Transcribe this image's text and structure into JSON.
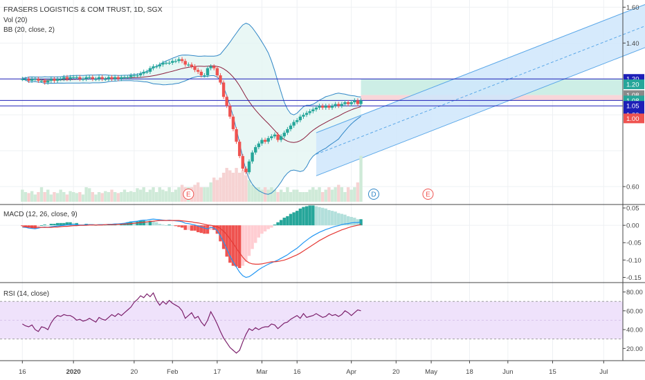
{
  "header": {
    "title": "FRASERS LOGISTICS & COM TRUST, 1D, SGX",
    "indicator_vol": "Vol (20)",
    "indicator_bb": "BB (20, close, 2)"
  },
  "colors": {
    "up": "#26a69a",
    "down": "#ef5350",
    "bb_line": "#2f86c6",
    "bb_basis": "#8a1d3c",
    "channel_fill": "#cfe6fb",
    "hline": "#1d1fb8",
    "target": "#cdeee6",
    "stop": "#f8d6d9",
    "macd": "#2196f3",
    "signal": "#e53935",
    "rsi": "#7b1f6b",
    "rsi_band": "#efe2fb"
  },
  "x_axis": {
    "ticks": [
      {
        "label": "16",
        "day": 0
      },
      {
        "label": "2020",
        "day": 16
      },
      {
        "label": "20",
        "day": 35
      },
      {
        "label": "Feb",
        "day": 47
      },
      {
        "label": "17",
        "day": 61
      },
      {
        "label": "Mar",
        "day": 75
      },
      {
        "label": "16",
        "day": 86
      },
      {
        "label": "Apr",
        "day": 103
      },
      {
        "label": "20",
        "day": 117
      },
      {
        "label": "May",
        "day": 128
      },
      {
        "label": "18",
        "day": 140
      },
      {
        "label": "Jun",
        "day": 152
      },
      {
        "label": "15",
        "day": 166
      },
      {
        "label": "Jul",
        "day": 182
      }
    ]
  },
  "price_panel": {
    "ylim": [
      0.5,
      1.64
    ],
    "y_ticks": [
      "1.60",
      "1.40",
      "1.20",
      "1.08",
      "1.05",
      "1.00",
      "0.60"
    ],
    "y_tick_values": [
      1.6,
      1.4,
      1.2,
      1.08,
      1.05,
      1.0,
      0.6
    ],
    "horizontal_lines": [
      1.2,
      1.08,
      1.05
    ],
    "price_tags": [
      {
        "label": "1.20",
        "value": 1.2,
        "color": "#1d1fb8"
      },
      {
        "label": "1.20",
        "value": 1.17,
        "color": "#26a69a"
      },
      {
        "label": "1.08",
        "value": 1.11,
        "color": "#8a8a8a"
      },
      {
        "label": "1.08",
        "value": 1.08,
        "color": "#26a69a"
      },
      {
        "label": "1.05",
        "value": 1.05,
        "color": "#1d1fb8"
      },
      {
        "label": "1.00",
        "value": 1.0,
        "color": "#1d1fb8"
      },
      {
        "label": "1.00",
        "value": 0.98,
        "color": "#ef5350"
      }
    ],
    "channel": {
      "start_day": 92,
      "end_day": 200,
      "start_mid": 0.78,
      "end_mid": 1.53,
      "half_width": 0.12
    },
    "event_markers": [
      {
        "label": "E",
        "day": 52
      },
      {
        "label": "D",
        "day": 110
      },
      {
        "label": "E",
        "day": 127
      }
    ]
  },
  "macd_panel": {
    "title": "MACD (12, 26, close, 9)",
    "ylim": [
      -0.165,
      0.06
    ],
    "y_ticks": [
      "0.05",
      "0.00",
      "-0.05",
      "-0.10",
      "-0.15"
    ],
    "y_tick_values": [
      0.05,
      0.0,
      -0.05,
      -0.1,
      -0.15
    ]
  },
  "rsi_panel": {
    "title": "RSI (14, close)",
    "ylim": [
      7,
      90
    ],
    "band": [
      30,
      70
    ],
    "y_ticks": [
      "80.00",
      "60.00",
      "40.00",
      "20.00"
    ],
    "y_tick_values": [
      80,
      60,
      40,
      20
    ]
  },
  "chart_data": {
    "type": "candlestick",
    "title": "FRASERS LOGISTICS & COM TRUST, 1D, SGX",
    "ylim": [
      0.5,
      1.64
    ],
    "x_day_range": [
      -7,
      188
    ],
    "close": [
      1.2,
      1.2,
      1.19,
      1.2,
      1.2,
      1.19,
      1.19,
      1.18,
      1.19,
      1.2,
      1.19,
      1.2,
      1.2,
      1.21,
      1.2,
      1.21,
      1.21,
      1.21,
      1.2,
      1.2,
      1.21,
      1.21,
      1.2,
      1.2,
      1.21,
      1.2,
      1.2,
      1.21,
      1.2,
      1.21,
      1.2,
      1.21,
      1.21,
      1.21,
      1.22,
      1.22,
      1.22,
      1.23,
      1.24,
      1.24,
      1.26,
      1.27,
      1.27,
      1.28,
      1.29,
      1.29,
      1.29,
      1.3,
      1.3,
      1.31,
      1.3,
      1.28,
      1.28,
      1.27,
      1.25,
      1.24,
      1.22,
      1.22,
      1.26,
      1.27,
      1.26,
      1.22,
      1.18,
      1.1,
      1.05,
      0.99,
      0.92,
      0.85,
      0.77,
      0.7,
      0.68,
      0.74,
      0.79,
      0.82,
      0.84,
      0.86,
      0.85,
      0.87,
      0.88,
      0.89,
      0.86,
      0.88,
      0.9,
      0.92,
      0.94,
      0.96,
      0.97,
      0.99,
      1.0,
      1.01,
      1.02,
      1.03,
      1.04,
      1.05,
      1.04,
      1.05,
      1.04,
      1.05,
      1.06,
      1.05,
      1.06,
      1.07,
      1.06,
      1.07,
      1.08,
      1.06,
      1.08
    ],
    "volume": [
      0.25,
      0.2,
      0.18,
      0.22,
      0.15,
      0.2,
      0.3,
      0.2,
      0.25,
      0.15,
      0.2,
      0.18,
      0.25,
      0.2,
      0.15,
      0.22,
      0.2,
      0.18,
      0.2,
      0.15,
      0.3,
      0.28,
      0.2,
      0.15,
      0.2,
      0.18,
      0.22,
      0.2,
      0.25,
      0.2,
      0.18,
      0.2,
      0.25,
      0.2,
      0.22,
      0.2,
      0.28,
      0.25,
      0.3,
      0.2,
      0.25,
      0.3,
      0.2,
      0.3,
      0.25,
      0.22,
      0.3,
      0.2,
      0.25,
      0.3,
      0.35,
      0.3,
      0.3,
      0.3,
      0.35,
      0.4,
      0.3,
      0.3,
      0.3,
      0.4,
      0.5,
      0.45,
      0.5,
      0.6,
      0.7,
      0.65,
      0.6,
      0.7,
      0.6,
      0.65,
      0.55,
      0.45,
      0.35,
      0.3,
      0.3,
      0.25,
      0.3,
      0.25,
      0.3,
      0.25,
      0.2,
      0.25,
      0.2,
      0.3,
      0.2,
      0.25,
      0.25,
      0.2,
      0.2,
      0.2,
      0.25,
      0.3,
      0.25,
      0.3,
      0.2,
      0.25,
      0.3,
      0.25,
      0.3,
      0.35,
      0.3,
      0.2,
      0.3,
      0.25,
      0.3,
      0.4,
      0.95
    ],
    "rsi": [
      46,
      44,
      43,
      45,
      40,
      38,
      43,
      42,
      40,
      47,
      52,
      55,
      54,
      56,
      55,
      55,
      53,
      50,
      51,
      49,
      50,
      52,
      50,
      48,
      53,
      51,
      50,
      53,
      56,
      54,
      57,
      55,
      58,
      61,
      64,
      69,
      72,
      76,
      74,
      78,
      75,
      79,
      71,
      66,
      70,
      67,
      71,
      68,
      66,
      64,
      60,
      52,
      55,
      58,
      52,
      54,
      48,
      44,
      50,
      59,
      53,
      46,
      38,
      31,
      26,
      21,
      18,
      15,
      18,
      27,
      35,
      41,
      39,
      42,
      40,
      42,
      43,
      43,
      46,
      45,
      41,
      44,
      47,
      48,
      51,
      53,
      55,
      52,
      57,
      53,
      54,
      55,
      57,
      55,
      53,
      54,
      57,
      55,
      56,
      54,
      56,
      60,
      58,
      55,
      58,
      61,
      60
    ],
    "macd": [
      -0.005,
      -0.006,
      -0.008,
      -0.009,
      -0.01,
      -0.008,
      -0.006,
      -0.005,
      -0.006,
      -0.004,
      -0.003,
      -0.002,
      -0.001,
      0,
      0.001,
      0.002,
      0.002,
      0.002,
      0.001,
      0.001,
      0.002,
      0.002,
      0.002,
      0.001,
      0.002,
      0.002,
      0.002,
      0.003,
      0.003,
      0.004,
      0.004,
      0.005,
      0.006,
      0.008,
      0.01,
      0.011,
      0.012,
      0.014,
      0.015,
      0.015,
      0.017,
      0.018,
      0.017,
      0.016,
      0.015,
      0.014,
      0.015,
      0.014,
      0.013,
      0.012,
      0.01,
      0.006,
      0.005,
      0.003,
      0.001,
      -0.002,
      -0.005,
      -0.008,
      -0.01,
      -0.006,
      -0.008,
      -0.015,
      -0.03,
      -0.048,
      -0.068,
      -0.088,
      -0.105,
      -0.12,
      -0.135,
      -0.145,
      -0.15,
      -0.148,
      -0.142,
      -0.135,
      -0.128,
      -0.122,
      -0.117,
      -0.112,
      -0.108,
      -0.104,
      -0.1,
      -0.095,
      -0.09,
      -0.085,
      -0.078,
      -0.072,
      -0.066,
      -0.058,
      -0.05,
      -0.043,
      -0.036,
      -0.03,
      -0.025,
      -0.02,
      -0.016,
      -0.012,
      -0.009,
      -0.006,
      -0.003,
      -0.001,
      0.002,
      0.004,
      0.005,
      0.007,
      0.008,
      0.008,
      0.01
    ],
    "signal": [
      -0.004,
      -0.004,
      -0.005,
      -0.005,
      -0.006,
      -0.006,
      -0.006,
      -0.006,
      -0.006,
      -0.006,
      -0.005,
      -0.005,
      -0.004,
      -0.003,
      -0.003,
      -0.002,
      -0.001,
      -0.001,
      0,
      0,
      0,
      0.001,
      0.001,
      0.001,
      0.001,
      0.001,
      0.002,
      0.002,
      0.002,
      0.002,
      0.003,
      0.003,
      0.004,
      0.004,
      0.005,
      0.006,
      0.007,
      0.008,
      0.009,
      0.01,
      0.011,
      0.012,
      0.013,
      0.014,
      0.014,
      0.014,
      0.014,
      0.014,
      0.014,
      0.014,
      0.013,
      0.012,
      0.011,
      0.01,
      0.008,
      0.007,
      0.005,
      0.003,
      0.001,
      0,
      -0.002,
      -0.004,
      -0.009,
      -0.017,
      -0.027,
      -0.039,
      -0.052,
      -0.066,
      -0.079,
      -0.092,
      -0.102,
      -0.108,
      -0.111,
      -0.112,
      -0.112,
      -0.111,
      -0.109,
      -0.107,
      -0.105,
      -0.105,
      -0.104,
      -0.102,
      -0.1,
      -0.097,
      -0.093,
      -0.089,
      -0.085,
      -0.08,
      -0.074,
      -0.068,
      -0.062,
      -0.056,
      -0.05,
      -0.044,
      -0.039,
      -0.034,
      -0.029,
      -0.025,
      -0.021,
      -0.017,
      -0.013,
      -0.01,
      -0.007,
      -0.004,
      -0.002,
      0,
      0.002
    ]
  }
}
